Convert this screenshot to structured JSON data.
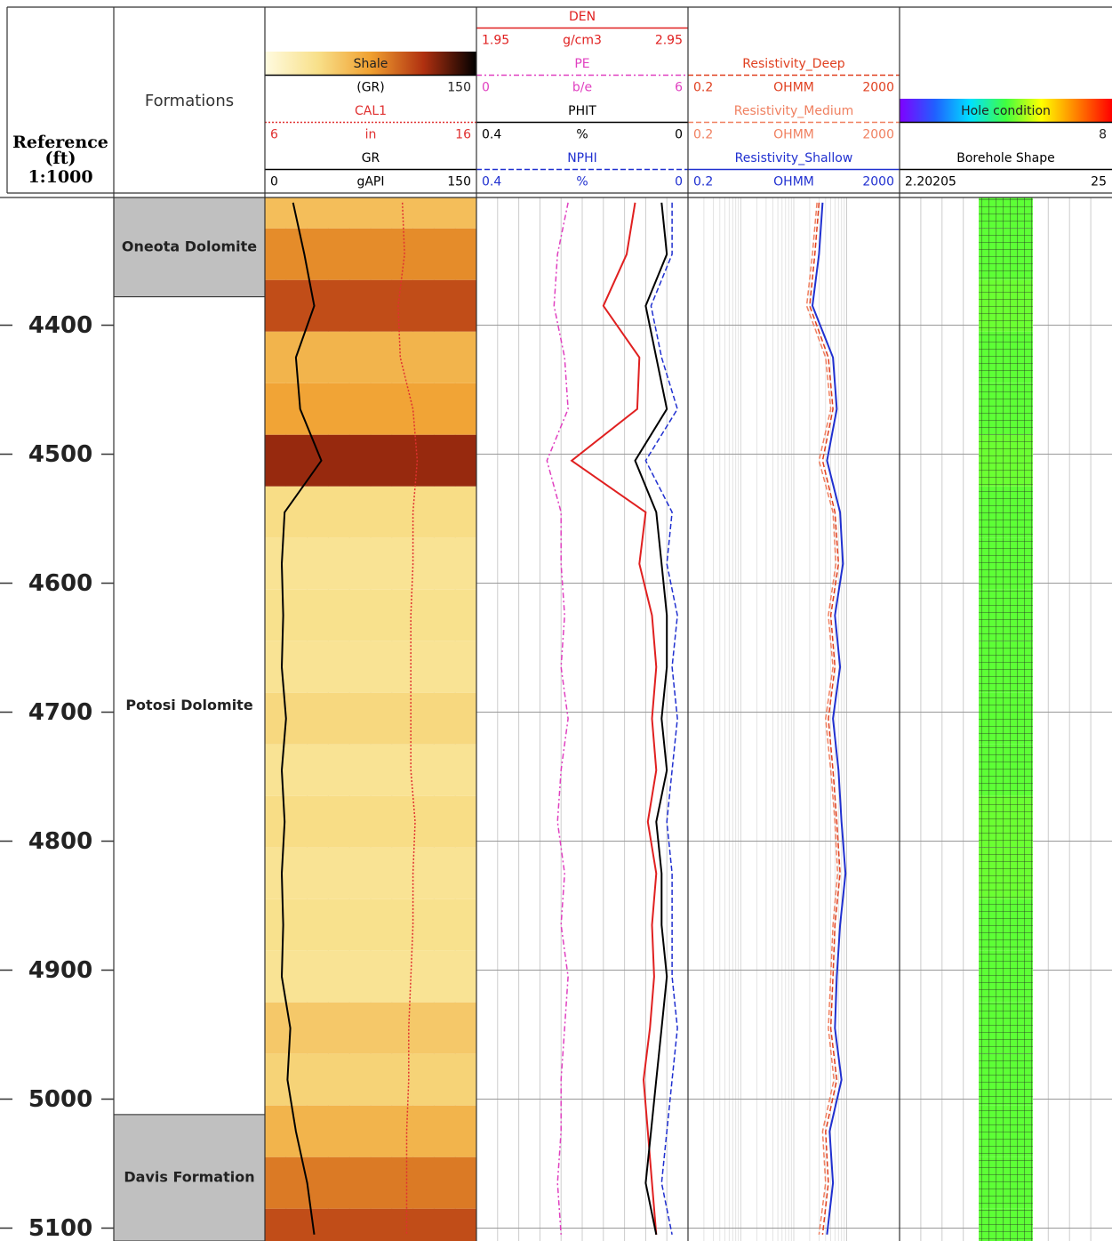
{
  "chart_data": {
    "type": "well-log",
    "reference_title": "Reference",
    "reference_unit": "(ft)",
    "reference_scale": "1:1000",
    "ylim": [
      4301,
      5110
    ],
    "yticks": [
      4400,
      4500,
      4600,
      4700,
      4800,
      4900,
      5000,
      5100
    ],
    "grid": true,
    "formations_title": "Formations",
    "formations": [
      {
        "name": "Oneota Dolomite",
        "top": 4301,
        "base": 4378,
        "color": "#c0c0c0"
      },
      {
        "name": "Potosi Dolomite",
        "top": 4378,
        "base": 5012,
        "color": "#ffffff"
      },
      {
        "name": "Davis Formation",
        "top": 5012,
        "base": 5110,
        "color": "#c0c0c0"
      }
    ],
    "depths": [
      4305,
      4345,
      4385,
      4425,
      4465,
      4505,
      4545,
      4585,
      4625,
      4665,
      4705,
      4745,
      4785,
      4825,
      4865,
      4905,
      4945,
      4985,
      5025,
      5065,
      5105
    ],
    "tracks": [
      {
        "items": [
          {
            "name": "Shale",
            "unit": "(GR)",
            "xlim": [
              1,
              150
            ],
            "color": "#000000",
            "style": "colormap",
            "colors": [
              "#fffbe0",
              "#f8e08a",
              "#f0a030",
              "#b03010",
              "#000000"
            ]
          },
          {
            "name": "CAL1",
            "unit": "in",
            "xlim": [
              6,
              16
            ],
            "color": "#e03030",
            "style": "dotted",
            "values": [
              12.5,
              12.6,
              12.3,
              12.4,
              13.0,
              13.2,
              13.0,
              13.0,
              12.9,
              12.9,
              12.9,
              12.9,
              13.1,
              13.0,
              13.0,
              12.9,
              12.8,
              12.8,
              12.7,
              12.7,
              12.7
            ]
          },
          {
            "name": "GR",
            "unit": "gAPI",
            "xlim": [
              0,
              150
            ],
            "color": "#000000",
            "style": "solid",
            "values": [
              20,
              28,
              35,
              22,
              25,
              40,
              14,
              12,
              13,
              12,
              15,
              12,
              14,
              12,
              13,
              12,
              18,
              16,
              22,
              30,
              35
            ]
          }
        ]
      },
      {
        "items": [
          {
            "name": "DEN",
            "unit": "g/cm3",
            "xlim": [
              1.95,
              2.95
            ],
            "color": "#e02020",
            "style": "solid",
            "values": [
              2.7,
              2.66,
              2.55,
              2.72,
              2.71,
              2.4,
              2.75,
              2.72,
              2.78,
              2.8,
              2.78,
              2.8,
              2.76,
              2.8,
              2.78,
              2.79,
              2.77,
              2.74,
              2.76,
              2.78,
              2.8
            ]
          },
          {
            "name": "PE",
            "unit": "b/e",
            "xlim": [
              0,
              6
            ],
            "color": "#e040c0",
            "style": "dashdot",
            "values": [
              2.6,
              2.3,
              2.2,
              2.5,
              2.6,
              2.0,
              2.4,
              2.4,
              2.5,
              2.4,
              2.6,
              2.4,
              2.3,
              2.5,
              2.4,
              2.6,
              2.5,
              2.4,
              2.4,
              2.3,
              2.4
            ]
          },
          {
            "name": "PHIT",
            "unit": "%",
            "xlim": [
              0.4,
              0
            ],
            "color": "#000000",
            "style": "solid",
            "values": [
              0.05,
              0.04,
              0.08,
              0.06,
              0.04,
              0.1,
              0.06,
              0.05,
              0.04,
              0.04,
              0.05,
              0.04,
              0.06,
              0.05,
              0.05,
              0.04,
              0.05,
              0.06,
              0.07,
              0.08,
              0.06
            ]
          },
          {
            "name": "NPHI",
            "unit": "%",
            "xlim": [
              0.4,
              0
            ],
            "color": "#2030d0",
            "style": "dashed",
            "values": [
              0.03,
              0.03,
              0.07,
              0.05,
              0.02,
              0.08,
              0.03,
              0.04,
              0.02,
              0.03,
              0.02,
              0.03,
              0.04,
              0.03,
              0.03,
              0.03,
              0.02,
              0.03,
              0.04,
              0.05,
              0.03
            ]
          }
        ]
      },
      {
        "log": true,
        "items": [
          {
            "name": "Resistivity_Deep",
            "unit": "OHMM",
            "xlim": [
              0.2,
              2000
            ],
            "color": "#e04020",
            "style": "dashed",
            "values": [
              60,
              50,
              40,
              90,
              110,
              70,
              120,
              140,
              100,
              120,
              90,
              110,
              130,
              150,
              120,
              110,
              100,
              130,
              80,
              90,
              70
            ]
          },
          {
            "name": "Resistivity_Medium",
            "unit": "OHMM",
            "xlim": [
              0.2,
              2000
            ],
            "color": "#f08060",
            "style": "dashed",
            "values": [
              55,
              45,
              35,
              80,
              100,
              60,
              110,
              125,
              90,
              110,
              80,
              100,
              120,
              135,
              110,
              100,
              90,
              115,
              70,
              80,
              60
            ]
          },
          {
            "name": "Resistivity_Shallow",
            "unit": "OHMM",
            "xlim": [
              0.2,
              2000
            ],
            "color": "#2030d0",
            "style": "solid",
            "values": [
              70,
              60,
              45,
              110,
              130,
              85,
              150,
              170,
              120,
              150,
              110,
              140,
              160,
              190,
              150,
              130,
              120,
              160,
              95,
              110,
              85
            ]
          }
        ]
      },
      {
        "items": [
          {
            "name": "Hole condition",
            "xlim": [
              0,
              8
            ],
            "color": "#000000",
            "style": "colormap",
            "colors": [
              "#8000ff",
              "#2060ff",
              "#00e0ff",
              "#40ff40",
              "#ffff00",
              "#ff8000",
              "#ff0000"
            ],
            "values": [
              4.2,
              4.2,
              4.3,
              4.2,
              4.2,
              4.3,
              4.2,
              4.2,
              4.2,
              4.2,
              4.2,
              4.2,
              4.3,
              4.3,
              4.2,
              4.2,
              4.2,
              4.2,
              4.2,
              4.2,
              4.2
            ]
          },
          {
            "name": "Borehole Shape",
            "xlim": [
              2.20205,
              25
            ],
            "color": "#000000",
            "style": "column",
            "values": [
              8,
              8,
              8,
              8,
              8,
              8,
              8,
              8,
              8,
              8,
              8,
              8,
              8,
              8,
              8,
              8,
              8,
              8,
              8,
              8,
              8
            ]
          }
        ]
      }
    ]
  }
}
